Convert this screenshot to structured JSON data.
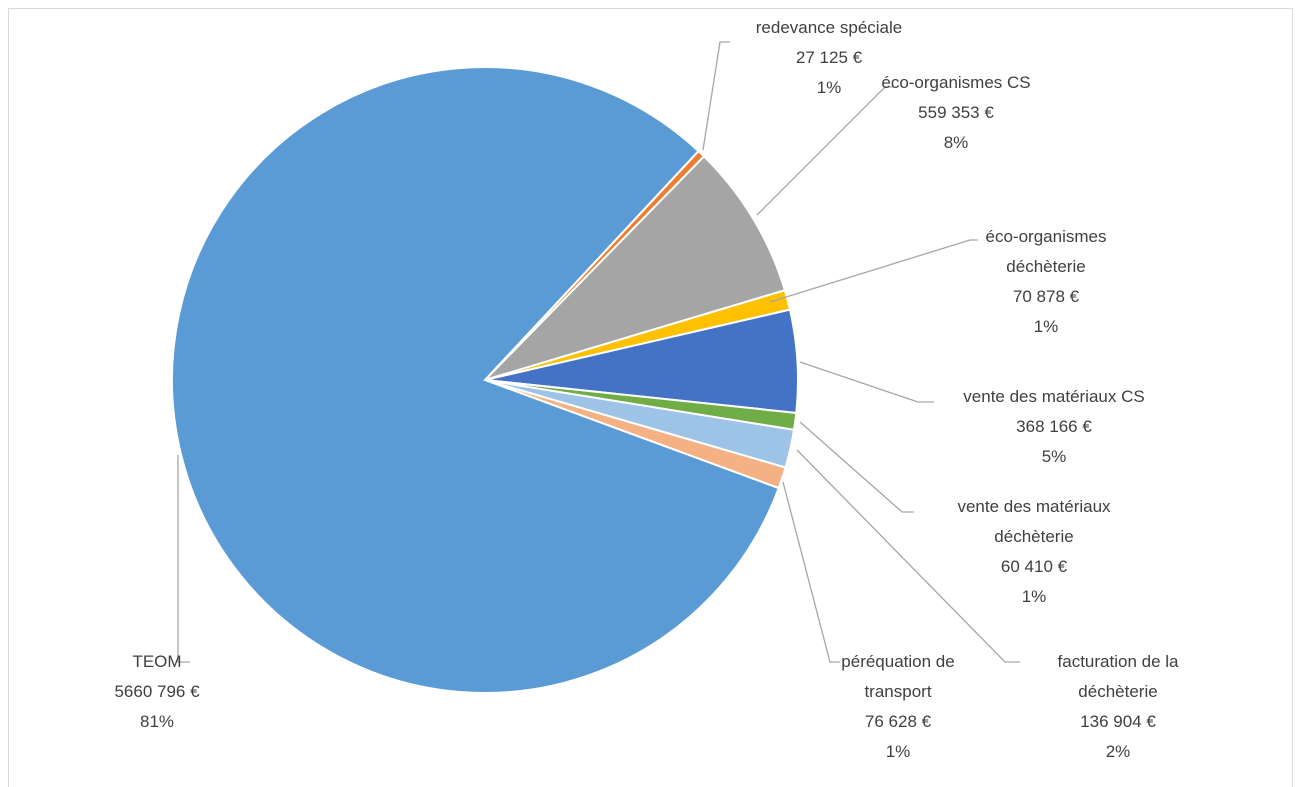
{
  "chart_data": {
    "type": "pie",
    "categories": [
      "redevance spéciale",
      "éco-organismes CS",
      "éco-organismes déchèterie",
      "vente des matériaux CS",
      "vente des matériaux déchèterie",
      "facturation de la déchèterie",
      "péréquation de transport",
      "TEOM"
    ],
    "values": [
      27125,
      559353,
      70878,
      368166,
      60410,
      136904,
      76628,
      5660796
    ],
    "value_labels": [
      "27 125 €",
      "559 353 €",
      "70 878 €",
      "368 166 €",
      "60 410 €",
      "136 904 €",
      "76 628 €",
      "5660 796 €"
    ],
    "percent_labels": [
      "1%",
      "8%",
      "1%",
      "5%",
      "1%",
      "2%",
      "1%",
      "81%"
    ],
    "colors": [
      "#ED7D31",
      "#A5A5A5",
      "#FFC000",
      "#4472C4",
      "#70AD47",
      "#9DC3E6",
      "#F4B183",
      "#5B9BD5"
    ]
  }
}
